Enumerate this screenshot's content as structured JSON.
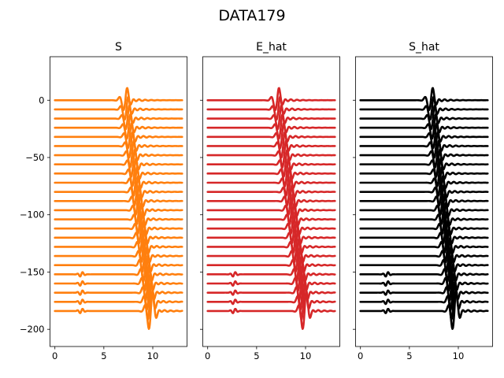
{
  "figure": {
    "suptitle": "DATA179"
  },
  "panels": [
    {
      "title": "S",
      "color": "#ff7f0e"
    },
    {
      "title": "E_hat",
      "color": "#d62728"
    },
    {
      "title": "S_hat",
      "color": "#000000"
    }
  ],
  "chart_data": {
    "type": "line",
    "title": "DATA179",
    "subplot_titles": [
      "S",
      "E_hat",
      "S_hat"
    ],
    "xlim": [
      -0.5,
      13.5
    ],
    "ylim": [
      -215,
      38
    ],
    "x_ticks": [
      0,
      5,
      10
    ],
    "y_ticks": [
      0,
      -50,
      -100,
      -150,
      -200
    ],
    "shared_y": true,
    "grid": false,
    "series": [
      {
        "values": [
          0,
          -8,
          -16,
          -24,
          -32,
          -40,
          -48,
          -56,
          -64,
          -72,
          -80,
          -88,
          -96,
          -104,
          -112,
          -120,
          -128,
          -136,
          -144,
          -152,
          -160,
          -168,
          -176,
          -184
        ],
        "pulse_start_x": 7.2,
        "pulse_end_x": 9.8,
        "trace_start_x": 0,
        "trace_end_x": 13
      },
      {
        "values": [
          0,
          -8,
          -16,
          -24,
          -32,
          -40,
          -48,
          -56,
          -64,
          -72,
          -80,
          -88,
          -96,
          -104,
          -112,
          -120,
          -128,
          -136,
          -144,
          -152,
          -160,
          -168,
          -176,
          -184
        ],
        "pulse_start_x": 7.1,
        "pulse_end_x": 9.9,
        "trace_start_x": 0,
        "trace_end_x": 13
      },
      {
        "values": [
          0,
          -8,
          -16,
          -24,
          -32,
          -40,
          -48,
          -56,
          -64,
          -72,
          -80,
          -88,
          -96,
          -104,
          -112,
          -120,
          -128,
          -136,
          -144,
          -152,
          -160,
          -168,
          -176,
          -184
        ],
        "pulse_start_x": 7.2,
        "pulse_end_x": 9.6,
        "trace_start_x": 0,
        "trace_end_x": 13
      }
    ]
  }
}
